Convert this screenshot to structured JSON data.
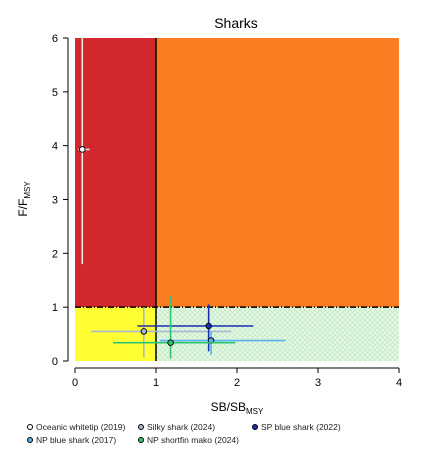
{
  "chart_data": {
    "type": "scatter",
    "title": "Sharks",
    "xlabel": "SB/SB",
    "xlabel_sub": "MSY",
    "ylabel": "F/F",
    "ylabel_sub": "MSY",
    "xlim": [
      0,
      4
    ],
    "ylim": [
      0,
      6
    ],
    "xticks": [
      "0",
      "1",
      "2",
      "3",
      "4"
    ],
    "yticks": [
      "0",
      "1",
      "2",
      "3",
      "4",
      "5",
      "6"
    ],
    "reference_lines": {
      "x": 1,
      "y": 1
    },
    "quadrant_colors": {
      "overfished_overfishing": "#d0282d",
      "overfishing_only": "#fb7d22",
      "overfished_only": "#ffff33",
      "healthy": "#e5f7e5"
    },
    "series": [
      {
        "name": "Oceanic whitetip (2019)",
        "color": "#ffffff",
        "x": 0.09,
        "y": 3.93,
        "x_range": [
          0.04,
          0.18
        ],
        "y_range": [
          1.8,
          6.0
        ]
      },
      {
        "name": "Silky shark (2024)",
        "color": "#a9b6cf",
        "x": 0.85,
        "y": 0.55,
        "x_range": [
          0.2,
          1.93
        ],
        "y_range": [
          0.07,
          1.0
        ]
      },
      {
        "name": "SP blue shark (2022)",
        "color": "#1b2fb0",
        "x": 1.65,
        "y": 0.65,
        "x_range": [
          0.77,
          2.2
        ],
        "y_range": [
          0.18,
          1.05
        ]
      },
      {
        "name": "NP blue shark (2017)",
        "color": "#58b0ee",
        "x": 1.68,
        "y": 0.38,
        "x_range": [
          1.05,
          2.6
        ],
        "y_range": [
          0.12,
          0.55
        ]
      },
      {
        "name": "NP shortfin mako (2024)",
        "color": "#2fc470",
        "x": 1.18,
        "y": 0.34,
        "x_range": [
          0.47,
          1.98
        ],
        "y_range": [
          0.05,
          1.2
        ]
      }
    ]
  }
}
